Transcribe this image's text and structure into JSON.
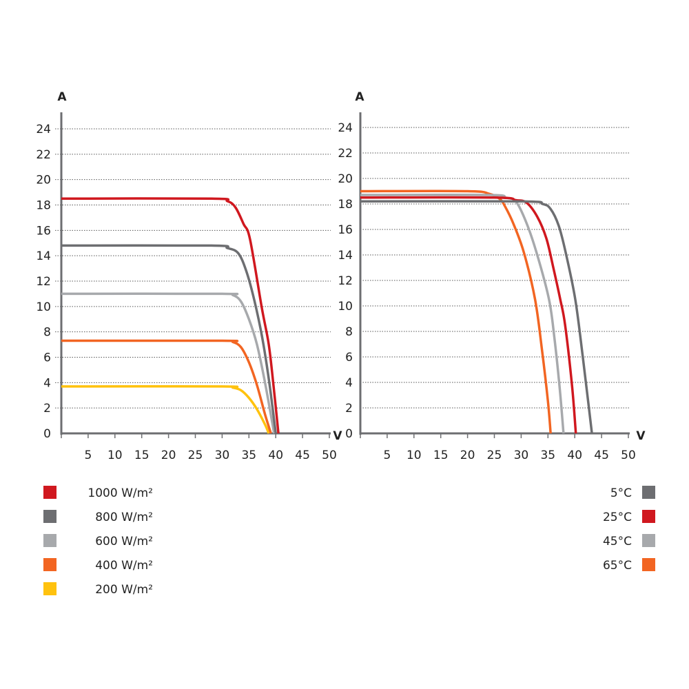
{
  "colors": {
    "axis": "#6d6e71",
    "grid": "#555555"
  },
  "chart_data": [
    {
      "type": "line",
      "xlabel": "V",
      "ylabel": "A",
      "xlim": [
        0,
        50
      ],
      "ylim": [
        0,
        24
      ],
      "xticks": [
        "5",
        "10",
        "15",
        "20",
        "25",
        "30",
        "35",
        "40",
        "45",
        "50"
      ],
      "xtick_values": [
        5,
        10,
        15,
        20,
        25,
        30,
        35,
        40,
        45,
        50
      ],
      "yticks": [
        "0",
        "2",
        "4",
        "6",
        "8",
        "10",
        "12",
        "14",
        "16",
        "18",
        "20",
        "22",
        "24"
      ],
      "ytick_values": [
        0,
        2,
        4,
        6,
        8,
        10,
        12,
        14,
        16,
        18,
        20,
        22,
        24
      ],
      "grid": "horizontal dotted",
      "legend_position": "bottom-left",
      "series": [
        {
          "name": "1000 W/m²",
          "color": "#d0181f",
          "points": [
            [
              0,
              18.5
            ],
            [
              28,
              18.5
            ],
            [
              31,
              18.3
            ],
            [
              32.5,
              17.8
            ],
            [
              34,
              16.5
            ],
            [
              35.2,
              15.3
            ],
            [
              37.4,
              9.9
            ],
            [
              38.7,
              7.0
            ],
            [
              39.6,
              3.7
            ],
            [
              40.5,
              0
            ]
          ]
        },
        {
          "name": "800 W/m²",
          "color": "#6d6e71",
          "points": [
            [
              0,
              14.8
            ],
            [
              28,
              14.8
            ],
            [
              31,
              14.6
            ],
            [
              33,
              14.2
            ],
            [
              34.5,
              12.8
            ],
            [
              36,
              10.5
            ],
            [
              37.5,
              7.5
            ],
            [
              38.8,
              4.0
            ],
            [
              40.0,
              0
            ]
          ]
        },
        {
          "name": "600 W/m²",
          "color": "#a7a9ac",
          "points": [
            [
              0,
              11.0
            ],
            [
              30,
              11.0
            ],
            [
              32,
              10.9
            ],
            [
              33.5,
              10.4
            ],
            [
              35,
              9.0
            ],
            [
              36.5,
              7.0
            ],
            [
              38,
              4.0
            ],
            [
              39.7,
              0
            ]
          ]
        },
        {
          "name": "400 W/m²",
          "color": "#f26522",
          "points": [
            [
              0,
              7.3
            ],
            [
              30,
              7.3
            ],
            [
              32,
              7.2
            ],
            [
              33.5,
              6.8
            ],
            [
              35,
              5.6
            ],
            [
              36.5,
              3.8
            ],
            [
              38,
              1.5
            ],
            [
              39.1,
              0
            ]
          ]
        },
        {
          "name": "200 W/m²",
          "color": "#ffc20e",
          "points": [
            [
              0,
              3.7
            ],
            [
              30,
              3.7
            ],
            [
              32,
              3.6
            ],
            [
              33.5,
              3.4
            ],
            [
              35,
              2.8
            ],
            [
              36.5,
              1.9
            ],
            [
              38,
              0.7
            ],
            [
              38.7,
              0
            ]
          ]
        }
      ]
    },
    {
      "type": "line",
      "xlabel": "V",
      "ylabel": "A",
      "xlim": [
        0,
        50
      ],
      "ylim": [
        0,
        24
      ],
      "xticks": [
        "5",
        "10",
        "15",
        "20",
        "25",
        "30",
        "35",
        "40",
        "45",
        "50"
      ],
      "xtick_values": [
        5,
        10,
        15,
        20,
        25,
        30,
        35,
        40,
        45,
        50
      ],
      "yticks": [
        "0",
        "2",
        "4",
        "6",
        "8",
        "10",
        "12",
        "14",
        "16",
        "18",
        "20",
        "22",
        "24"
      ],
      "ytick_values": [
        0,
        2,
        4,
        6,
        8,
        10,
        12,
        14,
        16,
        18,
        20,
        22,
        24
      ],
      "grid": "horizontal dotted",
      "legend_position": "bottom-right",
      "series": [
        {
          "name": "5°C",
          "color": "#6d6e71",
          "points": [
            [
              0,
              18.2
            ],
            [
              30,
              18.2
            ],
            [
              34,
              18.0
            ],
            [
              35.5,
              17.6
            ],
            [
              37,
              16.3
            ],
            [
              38.3,
              14.2
            ],
            [
              40.1,
              10.5
            ],
            [
              41.5,
              6.0
            ],
            [
              42.5,
              2.5
            ],
            [
              43.2,
              0
            ]
          ]
        },
        {
          "name": "25°C",
          "color": "#d0181f",
          "points": [
            [
              0,
              18.5
            ],
            [
              25,
              18.5
            ],
            [
              29,
              18.3
            ],
            [
              31,
              18.1
            ],
            [
              33,
              17.0
            ],
            [
              34.7,
              15.3
            ],
            [
              36,
              13.0
            ],
            [
              37.3,
              10.5
            ],
            [
              38.2,
              8.5
            ],
            [
              39.5,
              3.7
            ],
            [
              40.2,
              0
            ]
          ]
        },
        {
          "name": "45°C",
          "color": "#a7a9ac",
          "points": [
            [
              0,
              18.7
            ],
            [
              24,
              18.7
            ],
            [
              27,
              18.5
            ],
            [
              29,
              18.2
            ],
            [
              31,
              16.5
            ],
            [
              33,
              14.0
            ],
            [
              35.2,
              10.5
            ],
            [
              36.2,
              7.5
            ],
            [
              37.2,
              3.5
            ],
            [
              37.9,
              0
            ]
          ]
        },
        {
          "name": "65°C",
          "color": "#f26522",
          "points": [
            [
              0,
              19.0
            ],
            [
              20,
              19.0
            ],
            [
              24,
              18.8
            ],
            [
              26,
              18.4
            ],
            [
              27,
              17.8
            ],
            [
              28.5,
              16.5
            ],
            [
              30.5,
              14.2
            ],
            [
              32.6,
              10.5
            ],
            [
              33.9,
              6.5
            ],
            [
              35,
              2.5
            ],
            [
              35.5,
              0
            ]
          ]
        }
      ]
    }
  ]
}
